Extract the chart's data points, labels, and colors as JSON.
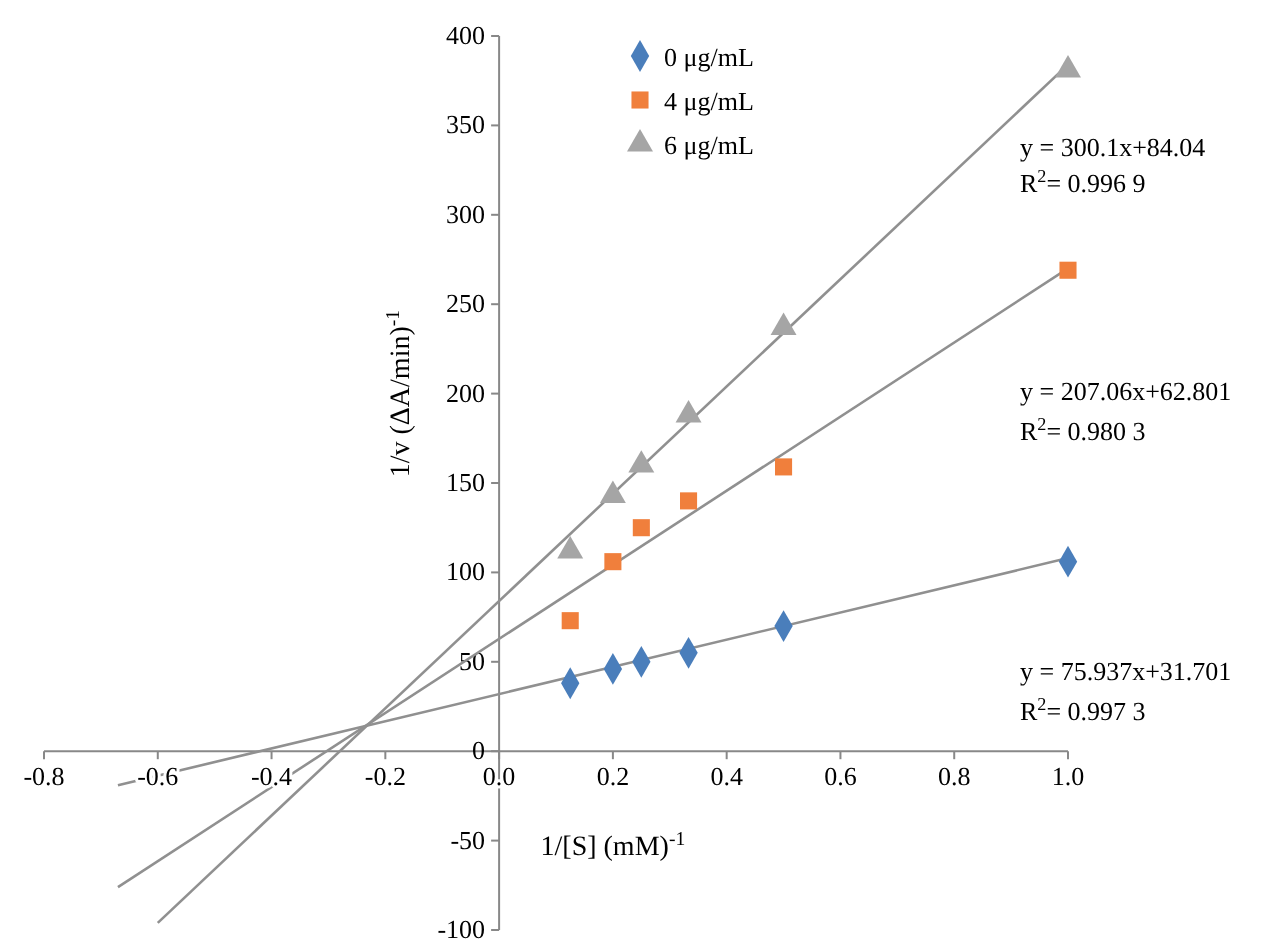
{
  "chart_data": {
    "type": "scatter",
    "xlabel": "1/[S] (mM)$^{-1}$",
    "ylabel": "1/v (ΔA/min)$^{-1}$",
    "xlim": [
      -0.8,
      1.0
    ],
    "ylim": [
      -100,
      400
    ],
    "xticks": [
      -0.8,
      -0.6,
      -0.4,
      -0.2,
      {
        "value": 0,
        "label": "0.0"
      },
      0.2,
      0.4,
      0.6,
      0.8,
      {
        "value": 1,
        "label": "1.0"
      }
    ],
    "yticks": [
      -100,
      -50,
      0,
      50,
      100,
      150,
      200,
      250,
      300,
      350,
      400
    ],
    "grid": false,
    "legend": "top",
    "x": [
      0.125,
      0.2,
      0.25,
      0.333,
      0.5,
      1.0
    ],
    "series": [
      {
        "name": "0 μg/mL",
        "color": "#4a7ebb",
        "marker": "diamond",
        "values": [
          38,
          46,
          50,
          55,
          70,
          106
        ]
      },
      {
        "name": "4 μg/mL",
        "color": "#f07f3c",
        "marker": "square",
        "values": [
          73,
          106,
          125,
          140,
          159,
          269
        ]
      },
      {
        "name": "6 μg/mL",
        "color": "#a5a5a5",
        "marker": "triangle",
        "values": [
          112,
          143,
          160,
          188,
          237,
          381
        ]
      },
      {
        "type": "line",
        "color": "#909090",
        "line_style": "solid",
        "x": [
          -0.67,
          1.0
        ],
        "values": [
          -19,
          108
        ]
      },
      {
        "type": "line",
        "color": "#909090",
        "line_style": "solid",
        "x": [
          -0.67,
          1.0
        ],
        "values": [
          -76,
          270
        ]
      },
      {
        "type": "line",
        "color": "#909090",
        "line_style": "solid",
        "x": [
          -0.6,
          1.0
        ],
        "values": [
          -96,
          384
        ]
      }
    ],
    "annotations": [
      "y = 300.1x+84.04",
      "R$^{2}$= 0.996 9",
      "y = 207.06x+62.801",
      "R$^{2}$= 0.980 3",
      "y = 75.937x+31.701",
      "R$^{2}$= 0.997 3"
    ]
  }
}
